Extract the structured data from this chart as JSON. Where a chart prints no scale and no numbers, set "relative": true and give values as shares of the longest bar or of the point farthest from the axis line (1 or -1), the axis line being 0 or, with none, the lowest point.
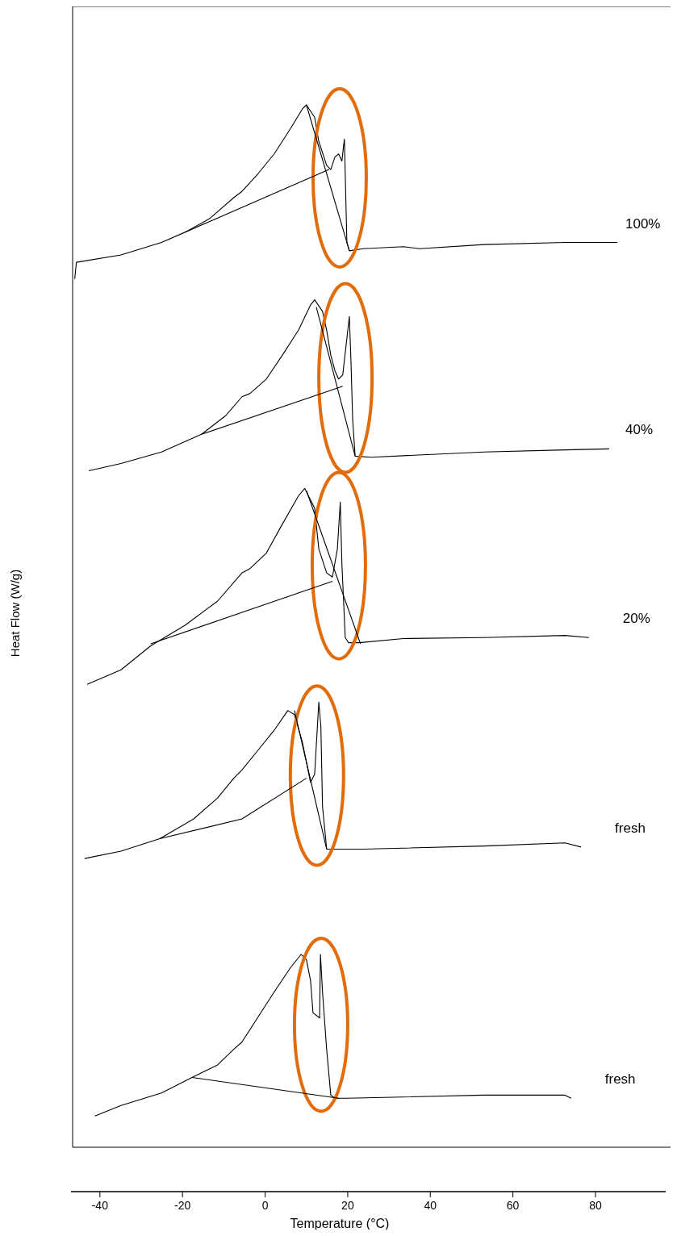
{
  "chart_data": {
    "type": "line",
    "relative": true,
    "xlabel": "Temperature (°C)",
    "ylabel": "Heat Flow (W/g)",
    "xlim": [
      -47,
      97
    ],
    "xticks": [
      -40,
      -20,
      0,
      20,
      40,
      60,
      80
    ],
    "series": [
      {
        "name": "100%",
        "color": "#000000",
        "x": [
          -46.1,
          -45.7,
          -34.9,
          -25.1,
          -19.3,
          -13.4,
          -7.6,
          -5.6,
          -1.7,
          2.2,
          6.1,
          9.0,
          10.0,
          12.0,
          13.0,
          14.9,
          15.9,
          16.9,
          17.8,
          18.6,
          19.0,
          19.2,
          19.8,
          20.4,
          23.7,
          33.5,
          37.4,
          53.0,
          72.6,
          85.3
        ],
        "values": [
          0.833,
          0.849,
          0.856,
          0.868,
          0.878,
          0.891,
          0.911,
          0.917,
          0.934,
          0.953,
          0.977,
          0.996,
          1.0,
          0.988,
          0.965,
          0.942,
          0.938,
          0.95,
          0.953,
          0.946,
          0.961,
          0.967,
          0.868,
          0.86,
          0.862,
          0.864,
          0.862,
          0.866,
          0.868,
          0.868
        ]
      },
      {
        "color": "#000000",
        "x": [
          -19.3,
          15.5
        ],
        "values": [
          0.878,
          0.938
        ]
      },
      {
        "color": "#000000",
        "x": [
          10.0,
          20.4
        ],
        "values": [
          1.0,
          0.86
        ]
      },
      {
        "name": "40%",
        "color": "#000000",
        "x": [
          -42.7,
          -34.9,
          -25.1,
          -15.4,
          -9.5,
          -5.6,
          -3.7,
          0.3,
          4.2,
          8.1,
          11.0,
          12.0,
          13.9,
          14.9,
          15.9,
          16.9,
          17.8,
          18.8,
          19.8,
          20.4,
          20.8,
          21.2,
          21.8,
          25.7,
          53.0,
          72.6,
          83.3
        ],
        "values": [
          0.649,
          0.656,
          0.667,
          0.684,
          0.702,
          0.72,
          0.723,
          0.737,
          0.76,
          0.784,
          0.808,
          0.813,
          0.802,
          0.784,
          0.76,
          0.745,
          0.737,
          0.741,
          0.776,
          0.797,
          0.753,
          0.698,
          0.663,
          0.662,
          0.667,
          0.669,
          0.67
        ]
      },
      {
        "color": "#000000",
        "x": [
          -15.4,
          18.8
        ],
        "values": [
          0.684,
          0.73
        ]
      },
      {
        "color": "#000000",
        "x": [
          12.4,
          21.8
        ],
        "values": [
          0.806,
          0.663
        ]
      },
      {
        "name": "20%",
        "color": "#000000",
        "x": [
          -43.1,
          -34.9,
          -27.7,
          -19.3,
          -11.5,
          -5.6,
          -3.7,
          0.3,
          4.2,
          8.1,
          9.6,
          12.0,
          13.0,
          14.9,
          16.3,
          17.5,
          18.2,
          18.6,
          19.4,
          20.2,
          22.7,
          33.5,
          53.0,
          72.6,
          78.4
        ],
        "values": [
          0.444,
          0.458,
          0.481,
          0.501,
          0.524,
          0.551,
          0.555,
          0.57,
          0.598,
          0.625,
          0.632,
          0.613,
          0.574,
          0.551,
          0.547,
          0.574,
          0.619,
          0.559,
          0.489,
          0.484,
          0.484,
          0.488,
          0.489,
          0.491,
          0.489
        ]
      },
      {
        "color": "#000000",
        "x": [
          -27.7,
          16.3
        ],
        "values": [
          0.483,
          0.543
        ]
      },
      {
        "color": "#000000",
        "x": [
          10.0,
          23.1
        ],
        "values": [
          0.63,
          0.483
        ]
      },
      {
        "name": "fresh",
        "color": "#000000",
        "x": [
          -43.7,
          -34.9,
          -25.5,
          -17.3,
          -11.5,
          -7.6,
          -5.6,
          -1.7,
          2.2,
          5.5,
          7.1,
          9.0,
          11.0,
          12.0,
          13.0,
          13.5,
          13.9,
          14.9,
          23.7,
          53.0,
          72.6,
          76.5
        ],
        "values": [
          0.277,
          0.284,
          0.296,
          0.315,
          0.335,
          0.354,
          0.362,
          0.381,
          0.4,
          0.419,
          0.415,
          0.389,
          0.35,
          0.358,
          0.427,
          0.404,
          0.327,
          0.286,
          0.286,
          0.289,
          0.292,
          0.288
        ]
      },
      {
        "color": "#000000",
        "x": [
          -25.5,
          -5.6,
          10.0
        ],
        "values": [
          0.296,
          0.315,
          0.354
        ]
      },
      {
        "color": "#000000",
        "x": [
          7.1,
          14.9
        ],
        "values": [
          0.419,
          0.286
        ]
      },
      {
        "name": "fresh",
        "color": "#000000",
        "x": [
          -41.2,
          -34.9,
          -25.1,
          -17.7,
          -11.5,
          -7.6,
          -5.6,
          -1.7,
          2.2,
          6.1,
          8.7,
          10.0,
          11.0,
          11.6,
          13.2,
          13.4,
          13.9,
          14.9,
          15.9,
          16.9,
          19.8,
          53.0,
          72.6,
          74.1
        ],
        "values": [
          0.03,
          0.04,
          0.052,
          0.067,
          0.079,
          0.094,
          0.101,
          0.125,
          0.149,
          0.172,
          0.185,
          0.18,
          0.16,
          0.129,
          0.124,
          0.185,
          0.149,
          0.094,
          0.05,
          0.047,
          0.047,
          0.05,
          0.05,
          0.047
        ]
      },
      {
        "color": "#000000",
        "x": [
          -17.7,
          17.8
        ],
        "values": [
          0.067,
          0.047
        ]
      }
    ]
  }
}
